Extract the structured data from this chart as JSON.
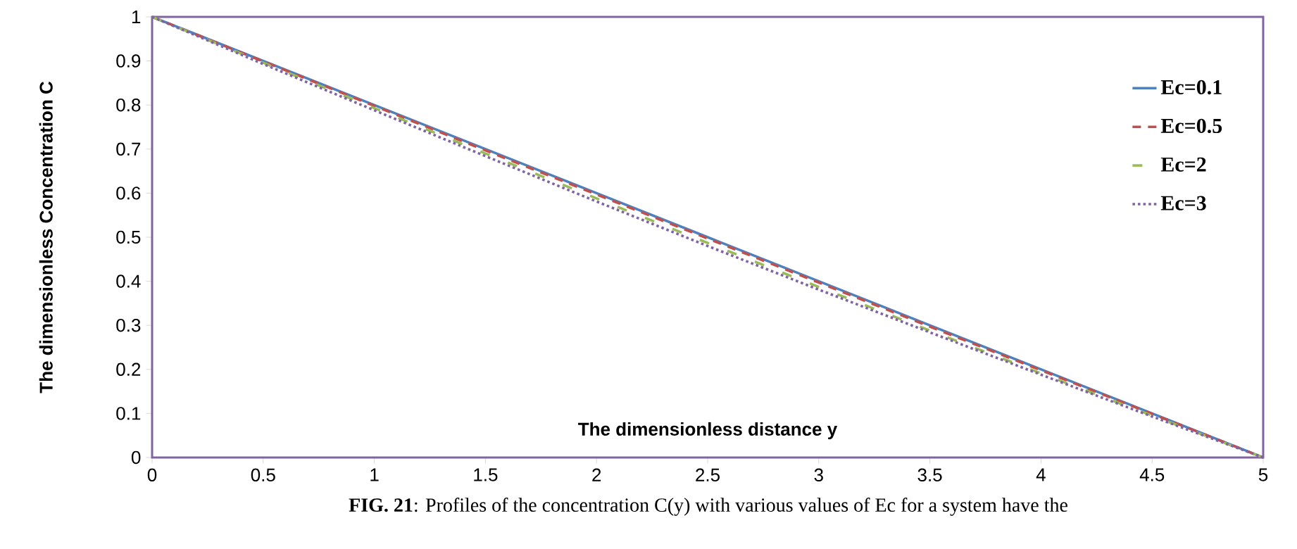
{
  "chart_data": {
    "type": "line",
    "title": "**FIG. 21**: Profiles of the concentration C(y) with various values of Ec for a system have the",
    "xlabel": "The dimensionless distance y",
    "ylabel": "The dimensionless Concentration C",
    "x": [
      0,
      0.5,
      1,
      1.5,
      2,
      2.5,
      3,
      3.5,
      4,
      4.5,
      5
    ],
    "series": [
      {
        "name": "Ec=0.1",
        "color": "#4f81bd",
        "line_style": "solid",
        "values": [
          1,
          0.9,
          0.8,
          0.7,
          0.6,
          0.5,
          0.4,
          0.3,
          0.2,
          0.1,
          0
        ]
      },
      {
        "name": "Ec=0.5",
        "color": "#c0504d",
        "line_style": "dashed",
        "values": [
          1,
          0.899,
          0.798,
          0.697,
          0.597,
          0.497,
          0.397,
          0.297,
          0.198,
          0.099,
          0
        ]
      },
      {
        "name": "Ec=2",
        "color": "#9bbb59",
        "line_style": "dashed",
        "values": [
          1,
          0.896,
          0.793,
          0.69,
          0.588,
          0.487,
          0.387,
          0.288,
          0.191,
          0.095,
          0
        ]
      },
      {
        "name": "Ec=3",
        "color": "#8064a2",
        "line_style": "dotted",
        "values": [
          1,
          0.893,
          0.788,
          0.684,
          0.581,
          0.48,
          0.381,
          0.284,
          0.188,
          0.093,
          0
        ]
      }
    ],
    "xlim": [
      0,
      5
    ],
    "ylim": [
      0,
      1
    ],
    "xticks": [
      0,
      0.5,
      1,
      1.5,
      2,
      2.5,
      3,
      3.5,
      4,
      4.5,
      5
    ],
    "yticks": [
      0,
      0.1,
      0.2,
      0.3,
      0.4,
      0.5,
      0.6,
      0.7,
      0.8,
      0.9,
      1
    ],
    "grid": false,
    "legend": "top right",
    "marker": "none"
  }
}
